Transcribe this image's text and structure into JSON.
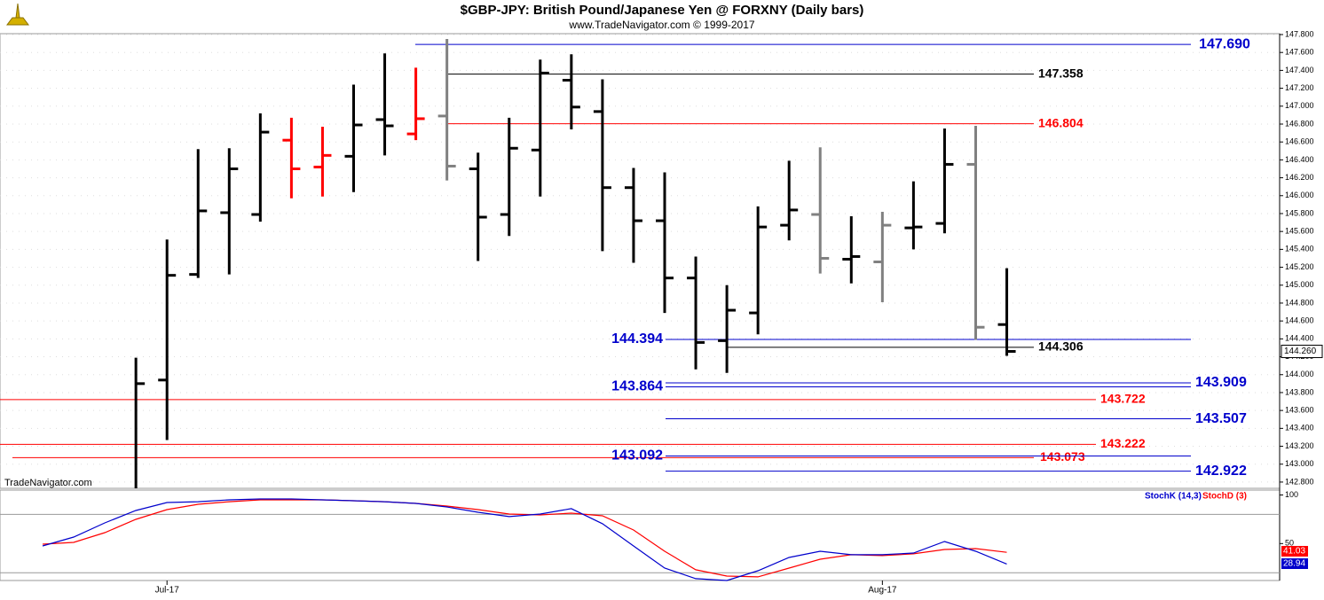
{
  "chart_data": {
    "type": "ohlc",
    "title": "$GBP-JPY:  British Pound/Japanese Yen @ FORXNY  (Daily bars)",
    "subtitle": "www.TradeNavigator.com © 1999-2017",
    "watermark": "TradeNavigator.com",
    "categories": [
      null,
      null,
      null,
      null,
      "Jul-17",
      null,
      null,
      null,
      null,
      null,
      null,
      null,
      null,
      null,
      null,
      null,
      null,
      null,
      null,
      null,
      null,
      null,
      null,
      null,
      null,
      null,
      null,
      "Aug-17",
      null,
      null,
      null,
      null
    ],
    "open": [
      null,
      null,
      null,
      null,
      143.94,
      145.12,
      145.81,
      145.79,
      146.62,
      146.32,
      146.44,
      146.85,
      146.69,
      146.89,
      146.3,
      145.79,
      146.51,
      147.29,
      146.94,
      146.09,
      145.72,
      145.08,
      144.38,
      144.69,
      145.67,
      145.79,
      145.29,
      145.26,
      145.64,
      145.69,
      146.35,
      144.56
    ],
    "high": [
      null,
      null,
      null,
      144.19,
      145.51,
      146.52,
      146.53,
      146.92,
      146.87,
      146.77,
      147.24,
      147.59,
      147.43,
      147.75,
      146.48,
      146.87,
      147.52,
      147.58,
      147.3,
      146.31,
      146.26,
      145.32,
      145.0,
      145.88,
      146.39,
      146.54,
      145.77,
      145.82,
      146.16,
      146.75,
      146.78,
      145.19
    ],
    "low": [
      null,
      null,
      null,
      142.73,
      143.27,
      145.08,
      145.12,
      145.71,
      145.97,
      145.99,
      146.04,
      146.45,
      146.62,
      146.17,
      145.27,
      145.55,
      145.99,
      146.74,
      145.38,
      145.25,
      144.69,
      144.06,
      144.02,
      144.45,
      145.5,
      145.13,
      145.02,
      144.81,
      145.4,
      145.58,
      144.39,
      144.21
    ],
    "close": [
      null,
      null,
      null,
      143.9,
      145.11,
      145.83,
      146.3,
      146.71,
      146.3,
      146.45,
      146.79,
      146.78,
      146.86,
      146.33,
      145.76,
      146.53,
      147.37,
      146.99,
      146.09,
      145.72,
      145.08,
      144.36,
      144.72,
      145.65,
      145.84,
      145.3,
      145.32,
      145.67,
      145.65,
      146.35,
      144.53,
      144.26
    ],
    "bar_colors": [
      null,
      null,
      null,
      "#000000",
      "#000000",
      "#000000",
      "#000000",
      "#000000",
      "#ff0000",
      "#ff0000",
      "#000000",
      "#000000",
      "#ff0000",
      "#808080",
      "#000000",
      "#000000",
      "#000000",
      "#000000",
      "#000000",
      "#000000",
      "#000000",
      "#000000",
      "#000000",
      "#000000",
      "#000000",
      "#808080",
      "#000000",
      "#808080",
      "#000000",
      "#000000",
      "#808080",
      "#000000"
    ],
    "ylim": [
      142.73,
      147.81
    ],
    "yticks": [
      {
        "value": 147.8,
        "label": "147.800"
      },
      {
        "value": 147.6,
        "label": "147.600"
      },
      {
        "value": 147.4,
        "label": "147.400"
      },
      {
        "value": 147.2,
        "label": "147.200"
      },
      {
        "value": 147.0,
        "label": "147.000"
      },
      {
        "value": 146.8,
        "label": "146.800"
      },
      {
        "value": 146.6,
        "label": "146.600"
      },
      {
        "value": 146.4,
        "label": "146.400"
      },
      {
        "value": 146.2,
        "label": "146.200"
      },
      {
        "value": 146.0,
        "label": "146.000"
      },
      {
        "value": 145.8,
        "label": "145.800"
      },
      {
        "value": 145.6,
        "label": "145.600"
      },
      {
        "value": 145.4,
        "label": "145.400"
      },
      {
        "value": 145.2,
        "label": "145.200"
      },
      {
        "value": 145.0,
        "label": "145.000"
      },
      {
        "value": 144.8,
        "label": "144.800"
      },
      {
        "value": 144.6,
        "label": "144.600"
      },
      {
        "value": 144.4,
        "label": "144.400"
      },
      {
        "value": 144.2,
        "label": "144.200"
      },
      {
        "value": 144.0,
        "label": "144.000"
      },
      {
        "value": 143.8,
        "label": "143.800"
      },
      {
        "value": 143.6,
        "label": "143.600"
      },
      {
        "value": 143.4,
        "label": "143.400"
      },
      {
        "value": 143.2,
        "label": "143.200"
      },
      {
        "value": 143.0,
        "label": "143.000"
      },
      {
        "value": 142.8,
        "label": "142.800"
      }
    ],
    "last_price": {
      "value": 144.26,
      "label": "144.260"
    },
    "hlines": [
      {
        "value": 147.69,
        "label": "147.690",
        "color": "#0000cc"
      },
      {
        "value": 147.358,
        "label": "147.358",
        "color": "#000000"
      },
      {
        "value": 146.804,
        "label": "146.804",
        "color": "#ff0000"
      },
      {
        "value": 144.394,
        "label": "144.394",
        "color": "#0000cc"
      },
      {
        "value": 144.306,
        "label": "144.306",
        "color": "#000000"
      },
      {
        "value": 143.909,
        "label": "143.909",
        "color": "#0000cc"
      },
      {
        "value": 143.864,
        "label": "143.864",
        "color": "#0000cc"
      },
      {
        "value": 143.722,
        "label": "143.722",
        "color": "#ff0000"
      },
      {
        "value": 143.507,
        "label": "143.507",
        "color": "#0000cc"
      },
      {
        "value": 143.222,
        "label": "143.222",
        "color": "#ff0000"
      },
      {
        "value": 143.073,
        "label": "143.073",
        "color": "#ff0000"
      },
      {
        "value": 143.092,
        "label": "143.092",
        "color": "#0000cc"
      },
      {
        "value": 142.922,
        "label": "142.922",
        "color": "#0000cc"
      }
    ],
    "stoch": {
      "ylim": [
        12,
        105
      ],
      "yticks": [
        100,
        50
      ],
      "levels": [
        80,
        20
      ],
      "series": [
        {
          "name": "StochD (3)",
          "color": "#ff0000",
          "values": [
            49.4,
            51.2,
            61.2,
            74.9,
            84.9,
            90.4,
            93.1,
            95.0,
            95.0,
            95.0,
            94.1,
            93.1,
            91.3,
            88.6,
            84.9,
            80.4,
            79.5,
            81.3,
            78.6,
            64.0,
            42.1,
            23.0,
            16.6,
            15.7,
            24.8,
            33.9,
            38.5,
            37.6,
            39.4,
            43.9,
            44.8,
            41.03
          ]
        },
        {
          "name": "StochK (14,3)",
          "color": "#0000cc",
          "values": [
            47.6,
            56.7,
            71.3,
            84.0,
            92.2,
            93.1,
            95.0,
            95.9,
            95.9,
            95.0,
            94.1,
            93.1,
            91.3,
            87.7,
            82.2,
            77.7,
            80.4,
            85.9,
            70.4,
            47.6,
            24.8,
            13.9,
            12.0,
            22.0,
            35.7,
            42.1,
            38.5,
            38.5,
            40.3,
            52.1,
            42.1,
            28.94
          ]
        }
      ]
    }
  }
}
